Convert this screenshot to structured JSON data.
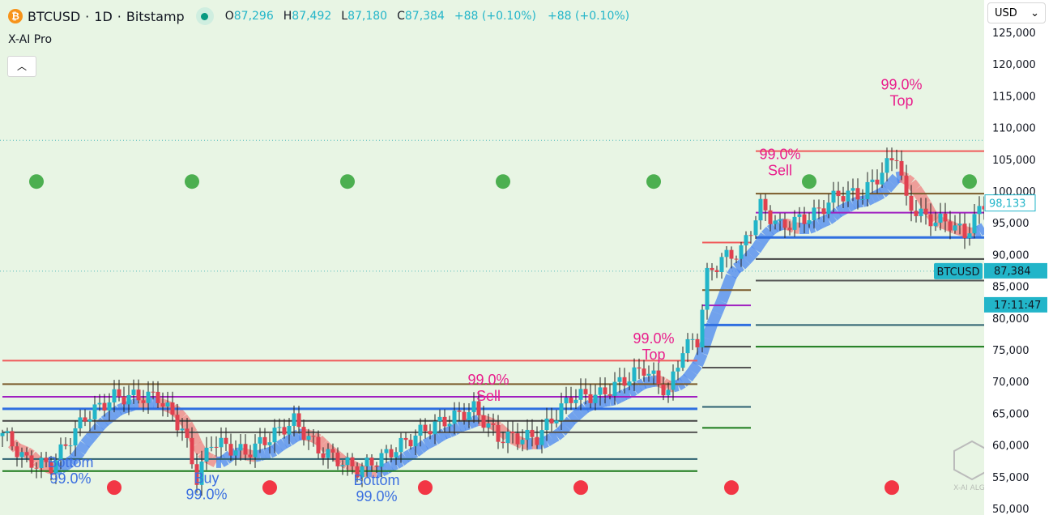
{
  "header": {
    "symbol": "BTCUSD",
    "interval": "1D",
    "exchange": "Bitstamp",
    "open": "87,296",
    "high": "87,492",
    "low": "87,180",
    "close": "87,384",
    "change1": "+88 (+0.10%)",
    "change2": "+88 (+0.10%)",
    "indicator": "X-AI Pro",
    "collapse_icon": "chevron-up-icon",
    "coin_icon": "bitcoin-icon"
  },
  "currency": {
    "label": "USD",
    "icon": "chevron-down-icon"
  },
  "watermark": "X-AI ALGO",
  "colors": {
    "up": "#22b5c9",
    "down": "#e0414f",
    "ribbon_up": "#4a86f0",
    "ribbon_down": "#f08080",
    "green_dot": "#4caf50",
    "red_dot": "#f23645",
    "signal": "#e91e8c",
    "buy": "#3b6fe0"
  },
  "chart_data": {
    "type": "candlestick",
    "ylim": [
      50000,
      125000
    ],
    "y_ticks": [
      50000,
      55000,
      60000,
      65000,
      70000,
      75000,
      80000,
      85000,
      90000,
      95000,
      100000,
      105000,
      110000,
      115000,
      120000,
      125000
    ],
    "y_tick_labels": [
      "50,000",
      "55,000",
      "60,000",
      "65,000",
      "70,000",
      "75,000",
      "80,000",
      "85,000",
      "90,000",
      "95,000",
      "100,000",
      "105,000",
      "110,000",
      "115,000",
      "120,000",
      "125,000"
    ],
    "close_path": [
      [
        0,
        61900
      ],
      [
        5,
        57400
      ],
      [
        10,
        56700
      ],
      [
        17,
        64400
      ],
      [
        23,
        67600
      ],
      [
        32,
        67600
      ],
      [
        37,
        62500
      ],
      [
        40,
        54800
      ],
      [
        43,
        60600
      ],
      [
        50,
        58700
      ],
      [
        60,
        63800
      ],
      [
        65,
        59300
      ],
      [
        73,
        56100
      ],
      [
        78,
        58000
      ],
      [
        87,
        62500
      ],
      [
        97,
        65700
      ],
      [
        102,
        61200
      ],
      [
        110,
        61200
      ],
      [
        117,
        67600
      ],
      [
        123,
        67900
      ],
      [
        132,
        72100
      ],
      [
        137,
        68200
      ],
      [
        140,
        75300
      ],
      [
        143,
        76500
      ],
      [
        145,
        86700
      ],
      [
        148,
        89300
      ],
      [
        152,
        90600
      ],
      [
        156,
        97600
      ],
      [
        160,
        94400
      ],
      [
        167,
        96300
      ],
      [
        172,
        99500
      ],
      [
        177,
        99500
      ],
      [
        182,
        104000
      ],
      [
        184,
        105900
      ],
      [
        186,
        98200
      ],
      [
        190,
        95700
      ],
      [
        195,
        95000
      ],
      [
        198,
        93100
      ],
      [
        202,
        98100
      ]
    ],
    "last_price": {
      "value": "98,133"
    },
    "current_price": {
      "symbol": "BTCUSD",
      "value": "87,384",
      "countdown": "17:11:47"
    },
    "levels": [
      {
        "from": 0,
        "to": 143,
        "prices": [
          73300,
          69600,
          67600,
          65700,
          63800,
          62000,
          57800,
          55900
        ]
      },
      {
        "from": 144,
        "to": 154,
        "prices": [
          91900,
          84400,
          82000,
          78900,
          75500,
          72200,
          66000,
          62700
        ]
      },
      {
        "from": 155,
        "to": 202,
        "prices": [
          106300,
          99600,
          96600,
          92700,
          89300,
          85900,
          78900,
          75500
        ]
      }
    ],
    "level_colors": [
      "#f05a5a",
      "#7a5a2a",
      "#a020c0",
      "#2f6fe0",
      "#444",
      "#555",
      "#2c6070",
      "#1a7a1a"
    ],
    "green_dots": [
      7,
      39,
      71,
      103,
      134,
      166,
      199
    ],
    "red_dots": [
      23,
      55,
      87,
      119,
      150,
      183
    ],
    "dot_price_top": 101500,
    "dot_price_bottom": 53300,
    "annotations": [
      {
        "kind": "top",
        "day": 185,
        "price": 115500,
        "pct": "99.0%",
        "text": "Top"
      },
      {
        "kind": "sell",
        "day": 160,
        "price": 104500,
        "pct": "99.0%",
        "text": "Sell"
      },
      {
        "kind": "top",
        "day": 134,
        "price": 75500,
        "pct": "99.0%",
        "text": "Top"
      },
      {
        "kind": "sell",
        "day": 100,
        "price": 69000,
        "pct": "99.0%",
        "text": "Sell"
      },
      {
        "kind": "bottom",
        "day": 14,
        "price": 56000,
        "pct": "99.0%",
        "text": "Bottom"
      },
      {
        "kind": "bottom",
        "day": 42,
        "price": 53500,
        "pct": "99.0%",
        "text": "Buy"
      },
      {
        "kind": "bottom",
        "day": 77,
        "price": 53200,
        "pct": "99.0%",
        "text": "Bottom"
      }
    ]
  }
}
